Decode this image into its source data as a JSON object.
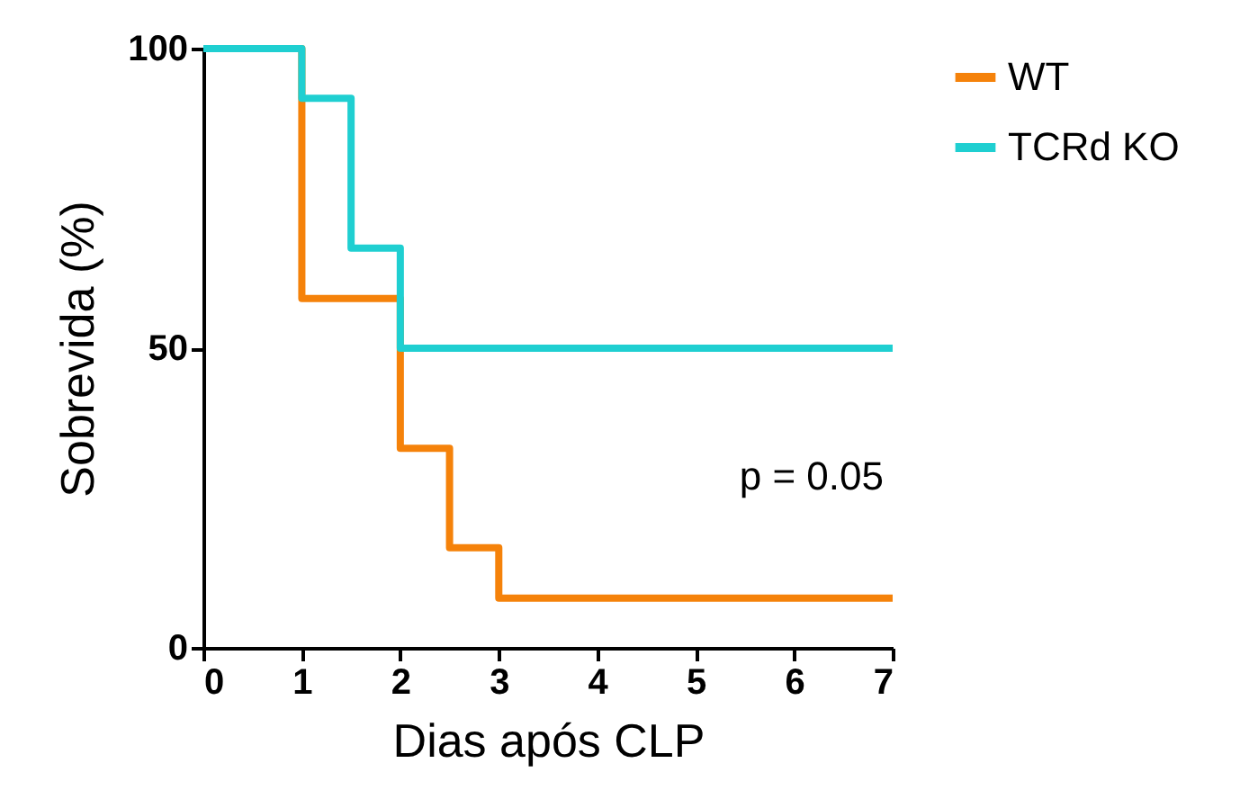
{
  "chart_data": {
    "type": "step",
    "xlabel": "Dias após CLP",
    "ylabel": "Sobrevida (%)",
    "series": [
      {
        "name": "WT",
        "color": "#f5820a",
        "x": [
          0,
          1,
          2,
          2.5,
          3,
          7
        ],
        "values": [
          100,
          58.3,
          33.3,
          16.7,
          8.3,
          8.3
        ]
      },
      {
        "name": "TCRd KO",
        "color": "#1fcfd1",
        "x": [
          0,
          1,
          1.5,
          2,
          7
        ],
        "values": [
          100,
          91.7,
          66.7,
          50,
          50
        ]
      }
    ],
    "xlim": [
      0,
      7
    ],
    "xticks": [
      0,
      1,
      2,
      3,
      4,
      5,
      6,
      7
    ],
    "ylim": [
      0,
      100
    ],
    "yticks": [
      0,
      50,
      100
    ],
    "annotations": [
      "p = 0.05"
    ],
    "legend": "top right",
    "grid": false,
    "marker": "none",
    "line_style": "solid"
  }
}
